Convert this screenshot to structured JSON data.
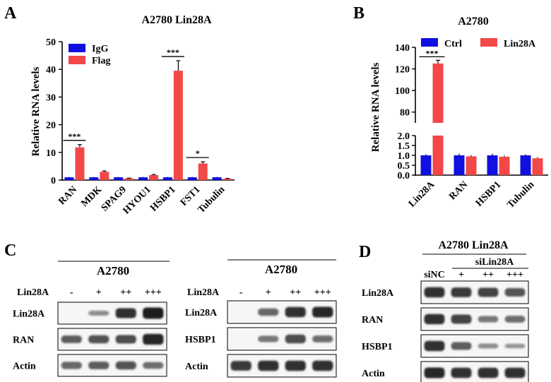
{
  "colors": {
    "series1": "#1010e0",
    "series2": "#f24848",
    "band": "#1a1a1a",
    "axis": "#000000"
  },
  "panels": {
    "A": {
      "letter": "A"
    },
    "B": {
      "letter": "B"
    },
    "C": {
      "letter": "C"
    },
    "D": {
      "letter": "D"
    }
  },
  "chart_data": [
    {
      "type": "bar",
      "title": "A2780 Lin28A",
      "ylabel": "Relative RNA levels",
      "xlabel": "",
      "categories": [
        "RAN",
        "MDK",
        "SPAG9",
        "HYOU1",
        "HSBP1",
        "FST1",
        "Tubulin"
      ],
      "series": [
        {
          "name": "IgG",
          "values": [
            1,
            1,
            1,
            1,
            1,
            1,
            1
          ],
          "errors": [
            0.15,
            0.15,
            0.15,
            0.15,
            0.15,
            0.15,
            0.15
          ]
        },
        {
          "name": "Flag",
          "values": [
            11.8,
            3,
            0.6,
            1.8,
            39.5,
            6,
            0.5
          ],
          "errors": [
            1,
            0.3,
            0.1,
            0.2,
            3.6,
            0.6,
            0.1
          ]
        }
      ],
      "ylim": [
        0,
        50
      ],
      "yticks": [
        "0",
        "10",
        "20",
        "30",
        "40",
        "50"
      ],
      "significance": [
        {
          "category": "RAN",
          "label": "***"
        },
        {
          "category": "HSBP1",
          "label": "***"
        },
        {
          "category": "FST1",
          "label": "*"
        }
      ],
      "legend": "top-left",
      "grid": false
    },
    {
      "type": "bar",
      "title": "A2780",
      "ylabel": "Relative RNA levels",
      "xlabel": "",
      "categories": [
        "Lin28A",
        "RAN",
        "HSBP1",
        "Tubulin"
      ],
      "series": [
        {
          "name": "Ctrl",
          "values": [
            1,
            1,
            1,
            1
          ],
          "errors": [
            0.05,
            0.08,
            0.08,
            0.05
          ]
        },
        {
          "name": "Lin28A",
          "values": [
            125,
            0.95,
            0.93,
            0.85
          ],
          "errors": [
            3,
            0.06,
            0.06,
            0.06
          ]
        }
      ],
      "broken_axis": true,
      "ylim_lower": [
        0,
        2
      ],
      "ylim_upper": [
        70,
        140
      ],
      "yticks_lower": [
        "0.0",
        "0.5",
        "1.0",
        "1.5",
        "2.0"
      ],
      "yticks_upper": [
        "80",
        "100",
        "120",
        "140"
      ],
      "significance": [
        {
          "category": "Lin28A",
          "label": "***"
        }
      ],
      "legend": "top",
      "grid": false
    }
  ],
  "blotC": {
    "left": {
      "title": "A2780",
      "condition": "Lin28A",
      "lanes": [
        "-",
        "+",
        "++",
        "+++"
      ],
      "rows": [
        {
          "label": "Lin28A",
          "intensity": [
            0,
            0.3,
            0.85,
            1
          ]
        },
        {
          "label": "RAN",
          "intensity": [
            0.6,
            0.65,
            0.7,
            0.95
          ]
        },
        {
          "label": "Actin",
          "intensity": [
            0.55,
            0.6,
            0.65,
            0.5
          ]
        }
      ]
    },
    "right": {
      "title": "A2780",
      "condition": "Lin28A",
      "lanes": [
        "-",
        "+",
        "++",
        "+++"
      ],
      "rows": [
        {
          "label": "Lin28A",
          "intensity": [
            0,
            0.55,
            0.85,
            0.9
          ]
        },
        {
          "label": "HSBP1",
          "intensity": [
            0,
            0.45,
            0.7,
            0.5
          ]
        },
        {
          "label": "Actin",
          "intensity": [
            0.8,
            0.85,
            0.85,
            0.85
          ]
        }
      ]
    }
  },
  "blotD": {
    "title": "A2780 Lin28A",
    "group": "siLin28A",
    "lanes": [
      "siNC",
      "+",
      "++",
      "+++"
    ],
    "rows": [
      {
        "label": "Lin28A",
        "intensity": [
          0.85,
          0.8,
          0.75,
          0.65
        ]
      },
      {
        "label": "RAN",
        "intensity": [
          0.85,
          0.75,
          0.45,
          0.5
        ]
      },
      {
        "label": "HSBP1",
        "intensity": [
          0.85,
          0.6,
          0.3,
          0.25
        ]
      },
      {
        "label": "Actin",
        "intensity": [
          0.9,
          0.85,
          0.85,
          0.85
        ]
      }
    ]
  }
}
